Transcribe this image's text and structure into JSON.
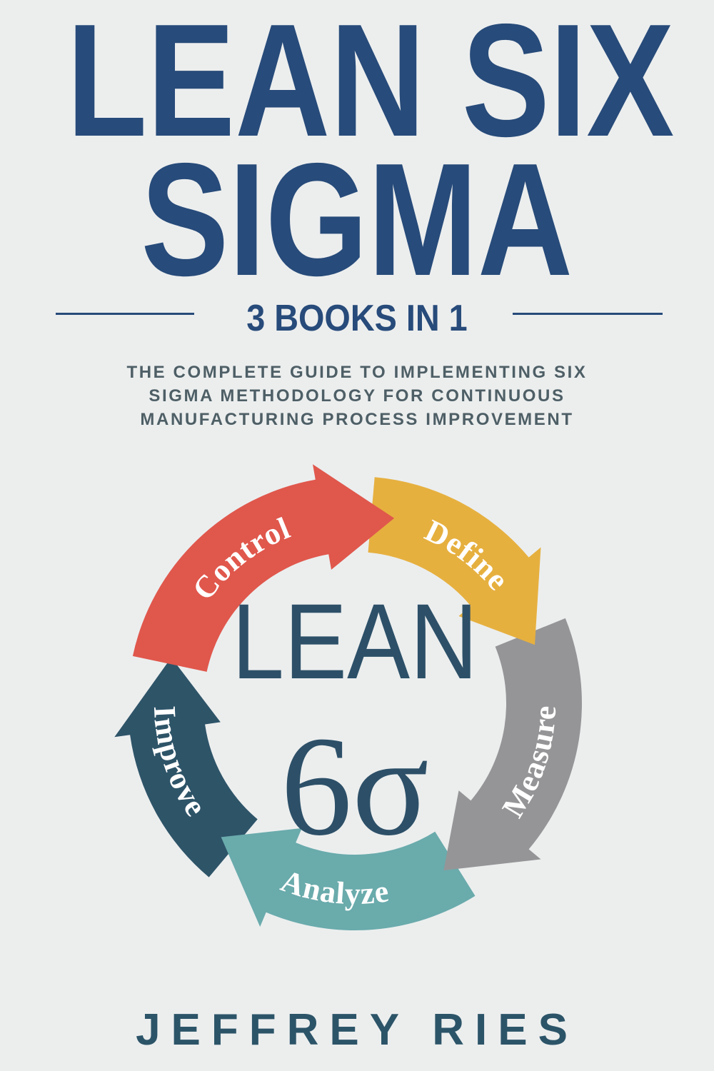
{
  "cover": {
    "title_line1": "LEAN SIX",
    "title_line2": "SIGMA",
    "badge": "3 BOOKS IN 1",
    "subtitle": [
      "THE COMPLETE GUIDE TO IMPLEMENTING SIX",
      "SIGMA METHODOLOGY FOR CONTINUOUS",
      "MANUFACTURING PROCESS IMPROVEMENT"
    ],
    "author": "JEFFREY RIES",
    "title_color": "#274b7a"
  },
  "cycle": {
    "center_top": "LEAN",
    "center_bottom": "6σ",
    "center_color": "#2d5068",
    "steps": [
      {
        "label": "Control",
        "color": "#e0574c"
      },
      {
        "label": "Define",
        "color": "#e6b03f"
      },
      {
        "label": "Measure",
        "color": "#959597"
      },
      {
        "label": "Analyze",
        "color": "#6aabac"
      },
      {
        "label": "Improve",
        "color": "#2e5468"
      }
    ]
  }
}
